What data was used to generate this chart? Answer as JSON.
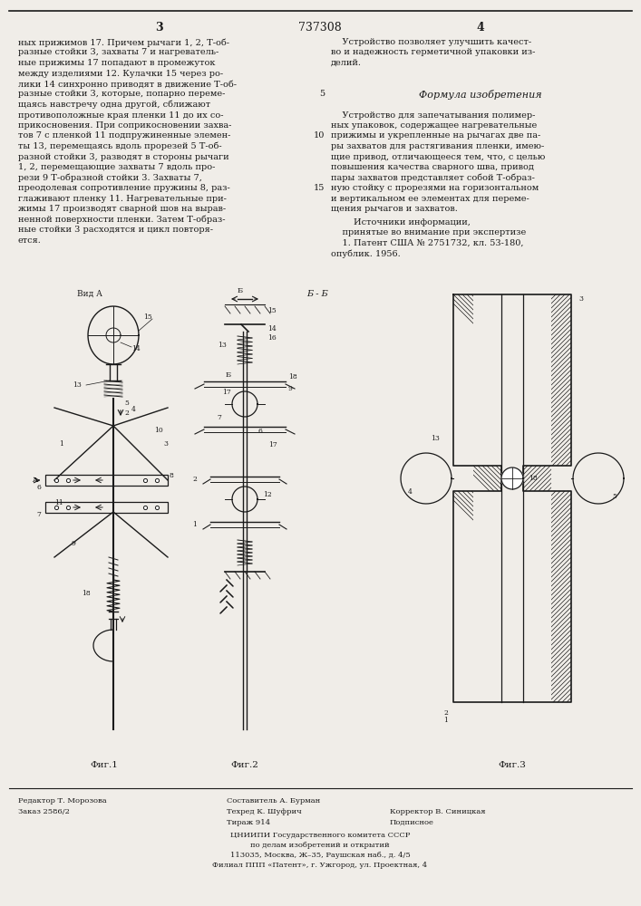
{
  "patent_number": "737308",
  "page_left": "3",
  "page_right": "4",
  "bg_color": "#f0ede8",
  "text_color": "#1a1a1a",
  "left_column_text": [
    "ных прижимов 17. Причем рычаги 1, 2, Т-об-",
    "разные стойки 3, захваты 7 и нагреватель-",
    "ные прижимы 17 попадают в промежуток",
    "между изделиями 12. Кулачки 15 через ро-",
    "лики 14 синхронно приводят в движение Т-об-",
    "разные стойки 3, которые, попарно переме-",
    "щаясь навстречу одна другой, сближают",
    "противоположные края пленки 11 до их со-",
    "прикосновения. При соприкосновении захва-",
    "тов 7 с пленкой 11 подпружиненные элемен-",
    "ты 13, перемещаясь вдоль прорезей 5 Т-об-",
    "разной стойки 3, разводят в стороны рычаги",
    "1, 2, перемещающие захваты 7 вдоль про-",
    "рези 9 Т-образной стойки 3. Захваты 7,",
    "преодолевая сопротивление пружины 8, раз-",
    "глаживают пленку 11. Нагревательные при-",
    "жимы 17 производят сварной шов на вырав-",
    "ненной поверхности пленки. Затем Т-образ-",
    "ные стойки 3 расходятся и цикл повторя-",
    "ется."
  ],
  "right_col_text": [
    "    Устройство позволяет улучшить качест-",
    "во и надежность герметичной упаковки из-",
    "делий."
  ],
  "formula_title": "Формула изобретения",
  "formula_text": [
    "    Устройство для запечатывания полимер-",
    "ных упаковок, содержащее нагревательные",
    "прижимы и укрепленные на рычагах две па-",
    "ры захватов для растягивания пленки, имею-",
    "щие привод, отличающееся тем, что, с целью",
    "повышения качества сварного шва, привод",
    "пары захватов представляет собой Т-образ-",
    "ную стойку с прорезями на горизонтальном",
    "и вертикальном ее элементах для переме-",
    "щения рычагов и захватов."
  ],
  "sources_header": "        Источники информации,",
  "sources_sub": "    принятые во внимание при экспертизе",
  "source1a": "    1. Патент США № 2751732, кл. 53-180,",
  "source1b": "опублик. 1956.",
  "fig1_label": "Фиг.1",
  "fig2_label": "Фиг.2",
  "fig3_label": "Фиг.3",
  "vid_a": "Вид А",
  "bb_label": "Б - Б",
  "footer_left1": "Редактор Т. Морозова",
  "footer_left2": "Заказ 2586/2",
  "footer_mid1": "Составитель А. Бурман",
  "footer_mid2": "Техред К. Шуфрич",
  "footer_mid2r": "Корректор В. Синицкая",
  "footer_mid3": "Тираж 914",
  "footer_mid3r": "Подписное",
  "cnipi1": "ЦНИИПИ Государственного комитета СССР",
  "cnipi2": "по делам изобретений и открытий",
  "cnipi3": "113035, Москва, Ж–35, Раушская наб., д. 4/5",
  "cnipi4": "Филиал ППП «Патент», г. Ужгород, ул. Проектная, 4"
}
